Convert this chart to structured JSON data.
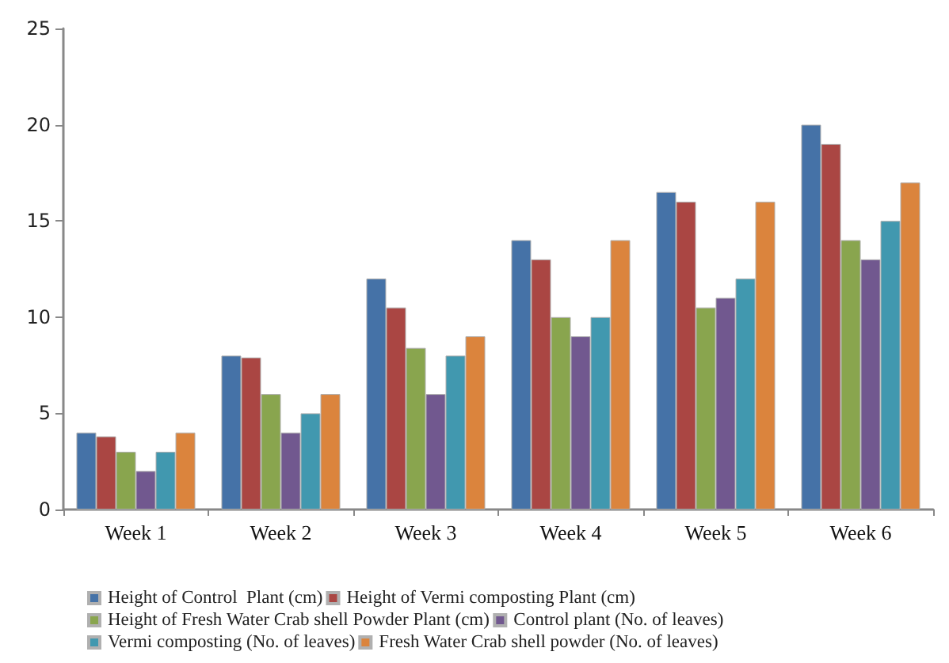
{
  "chart_data": {
    "type": "bar",
    "categories": [
      "Week 1",
      "Week 2",
      "Week 3",
      "Week 4",
      "Week 5",
      "Week 6"
    ],
    "series": [
      {
        "name": "Height of Control  Plant (cm)",
        "color": "#4572a7",
        "values": [
          4,
          8,
          12,
          14,
          16.5,
          20
        ]
      },
      {
        "name": "Height of Vermi composting Plant (cm)",
        "color": "#aa4643",
        "values": [
          3.8,
          7.9,
          10.5,
          13,
          16,
          19
        ]
      },
      {
        "name": "Height of Fresh Water Crab shell Powder Plant (cm)",
        "color": "#89a54e",
        "values": [
          3,
          6,
          8.4,
          10,
          10.5,
          14
        ]
      },
      {
        "name": "Control plant (No. of leaves)",
        "color": "#71588f",
        "values": [
          2,
          4,
          6,
          9,
          11,
          13
        ]
      },
      {
        "name": "Vermi composting (No. of leaves)",
        "color": "#4198af",
        "values": [
          3,
          5,
          8,
          10,
          12,
          15
        ]
      },
      {
        "name": "Fresh Water Crab shell powder (No. of leaves)",
        "color": "#db843d",
        "values": [
          4,
          6,
          9,
          14,
          16,
          17
        ]
      }
    ],
    "ylim": [
      0,
      25
    ],
    "yticks": [
      0,
      5,
      10,
      15,
      20,
      25
    ],
    "grid": false,
    "legend": "bottom"
  }
}
